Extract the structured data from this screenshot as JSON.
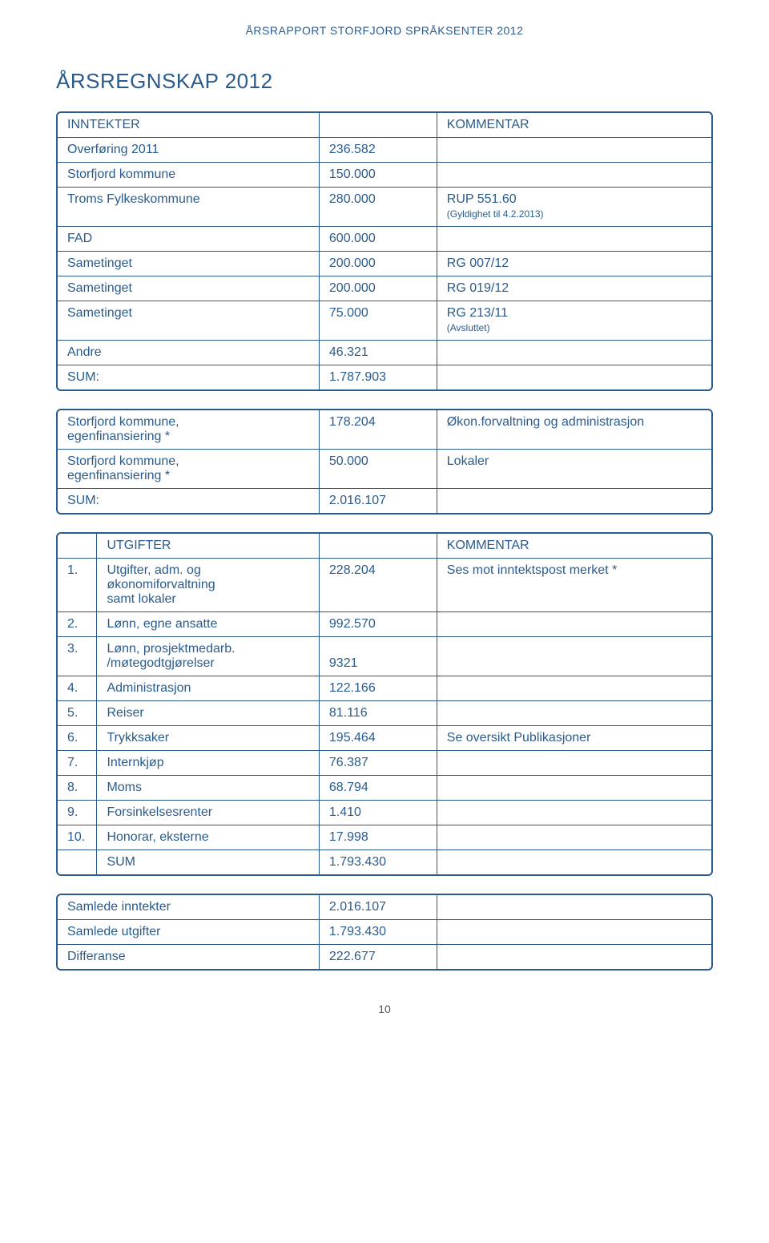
{
  "doc_header": "ÅRSRAPPORT STORFJORD SPRÅKSENTER 2012",
  "page_title": "ÅRSREGNSKAP 2012",
  "page_number": "10",
  "colors": {
    "brand": "#2a5b8c",
    "background": "#ffffff"
  },
  "table1": {
    "header": {
      "c1": "INNTEKTER",
      "c2": "",
      "c3": "KOMMENTAR"
    },
    "rows": [
      {
        "c1": "Overføring 2011",
        "c2": "236.582",
        "c3": ""
      },
      {
        "c1": "Storfjord kommune",
        "c2": "150.000",
        "c3": ""
      },
      {
        "c1": "Troms Fylkeskommune",
        "c2": "280.000",
        "c3": "RUP 551.60",
        "c3b": "(Gyldighet til 4.2.2013)"
      },
      {
        "c1": "FAD",
        "c2": "600.000",
        "c3": ""
      },
      {
        "c1": "Sametinget",
        "c2": "200.000",
        "c3": "RG 007/12"
      },
      {
        "c1": "Sametinget",
        "c2": "200.000",
        "c3": "RG 019/12"
      },
      {
        "c1": "Sametinget",
        "c2": "75.000",
        "c3": "RG 213/11",
        "c3b": "(Avsluttet)"
      },
      {
        "c1": "Andre",
        "c2": "46.321",
        "c3": ""
      },
      {
        "c1": "SUM:",
        "c2": "1.787.903",
        "c3": ""
      }
    ]
  },
  "table2": {
    "rows": [
      {
        "c1": "Storfjord kommune,",
        "c1b": "egenfinansiering *",
        "c2": "178.204",
        "c3": "Økon.forvaltning og  administrasjon"
      },
      {
        "c1": "Storfjord kommune,",
        "c1b": "egenfinansiering *",
        "c2": "50.000",
        "c3": "Lokaler"
      },
      {
        "c1": "SUM:",
        "c2": "2.016.107",
        "c3": ""
      }
    ]
  },
  "table3": {
    "header": {
      "n": "",
      "c1": "UTGIFTER",
      "c2": "",
      "c3": "KOMMENTAR"
    },
    "rows": [
      {
        "n": "1.",
        "c1": "Utgifter, adm. og",
        "c1b": "økonomiforvaltning",
        "c1c": "samt lokaler",
        "c2": "228.204",
        "c3": "Ses mot inntektspost merket *"
      },
      {
        "n": "2.",
        "c1": "Lønn, egne ansatte",
        "c2": "992.570",
        "c3": ""
      },
      {
        "n": "3.",
        "c1": "Lønn, prosjektmedarb.",
        "c1b": "/møtegodtgjørelser",
        "c2": "",
        "c2b": "9321",
        "c3": ""
      },
      {
        "n": "4.",
        "c1": "Administrasjon",
        "c2": "122.166",
        "c3": ""
      },
      {
        "n": "5.",
        "c1": "Reiser",
        "c2": "81.116",
        "c3": ""
      },
      {
        "n": "6.",
        "c1": "Trykksaker",
        "c2": "195.464",
        "c3": "Se oversikt Publikasjoner"
      },
      {
        "n": "7.",
        "c1": "Internkjøp",
        "c2": "76.387",
        "c3": ""
      },
      {
        "n": "8.",
        "c1": "Moms",
        "c2": "68.794",
        "c3": ""
      },
      {
        "n": "9.",
        "c1": "Forsinkelsesrenter",
        "c2": "1.410",
        "c3": ""
      },
      {
        "n": "10.",
        "c1": "Honorar, eksterne",
        "c2": "17.998",
        "c3": ""
      }
    ],
    "sum_row": {
      "c1": "SUM",
      "c2": "1.793.430",
      "c3": ""
    }
  },
  "table4": {
    "rows": [
      {
        "c1": "Samlede inntekter",
        "c2": "2.016.107",
        "c3": ""
      },
      {
        "c1": "Samlede utgifter",
        "c2": "1.793.430",
        "c3": ""
      },
      {
        "c1": "Differanse",
        "c2": "222.677",
        "c3": ""
      }
    ]
  }
}
